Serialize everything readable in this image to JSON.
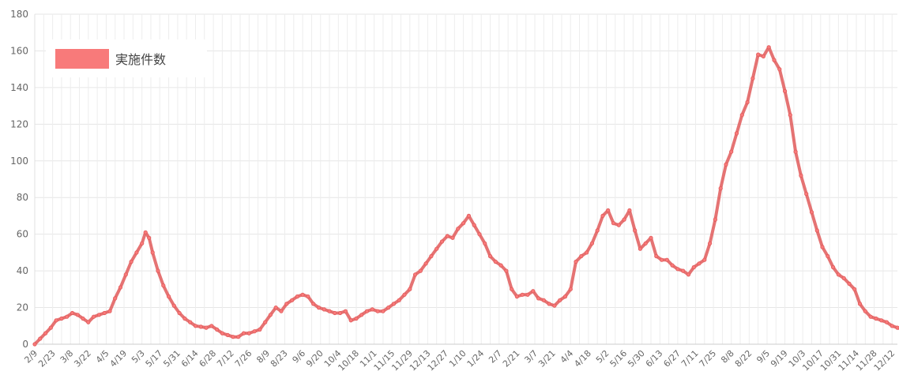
{
  "chart_data": {
    "type": "line",
    "ylim": [
      0,
      180
    ],
    "y_ticks": [
      0,
      20,
      40,
      60,
      80,
      100,
      120,
      140,
      160,
      180
    ],
    "x_tick_labels": [
      "2/9",
      "2/23",
      "3/8",
      "3/22",
      "4/5",
      "4/19",
      "5/3",
      "5/17",
      "5/31",
      "6/14",
      "6/28",
      "7/12",
      "7/26",
      "8/9",
      "8/23",
      "9/6",
      "9/20",
      "10/4",
      "10/18",
      "11/1",
      "11/15",
      "11/29",
      "12/13",
      "12/27",
      "1/10",
      "1/24",
      "2/7",
      "2/21",
      "3/7",
      "3/21",
      "4/4",
      "4/18",
      "5/2",
      "5/16",
      "5/30",
      "6/13",
      "6/27",
      "7/11",
      "7/25",
      "8/8",
      "8/22",
      "9/5",
      "9/19",
      "10/3",
      "10/17",
      "10/31",
      "11/14",
      "11/28",
      "12/12"
    ],
    "grid": true,
    "legend_position": "top-left",
    "colors": {
      "line": "#e05a5a",
      "fill_swatch": "#f87a7a",
      "grid": "#e6e6e6"
    },
    "series": [
      {
        "name": "実施件数",
        "points": [
          [
            0,
            0
          ],
          [
            0.3,
            3
          ],
          [
            0.6,
            6
          ],
          [
            0.9,
            9
          ],
          [
            1.2,
            13
          ],
          [
            1.5,
            14
          ],
          [
            1.8,
            15
          ],
          [
            2.1,
            17
          ],
          [
            2.4,
            16
          ],
          [
            2.7,
            14
          ],
          [
            3,
            12
          ],
          [
            3.3,
            15
          ],
          [
            3.6,
            16
          ],
          [
            3.9,
            17
          ],
          [
            4.2,
            18
          ],
          [
            4.5,
            25
          ],
          [
            4.8,
            31
          ],
          [
            5.1,
            38
          ],
          [
            5.4,
            45
          ],
          [
            5.7,
            50
          ],
          [
            6,
            55
          ],
          [
            6.2,
            61
          ],
          [
            6.4,
            58
          ],
          [
            6.6,
            50
          ],
          [
            6.9,
            40
          ],
          [
            7.2,
            32
          ],
          [
            7.5,
            26
          ],
          [
            7.8,
            21
          ],
          [
            8.1,
            17
          ],
          [
            8.4,
            14
          ],
          [
            8.7,
            12
          ],
          [
            9,
            10
          ],
          [
            9.3,
            9.5
          ],
          [
            9.6,
            9
          ],
          [
            9.9,
            10
          ],
          [
            10.2,
            8
          ],
          [
            10.5,
            6
          ],
          [
            10.8,
            5
          ],
          [
            11.1,
            4
          ],
          [
            11.4,
            4
          ],
          [
            11.7,
            6
          ],
          [
            12,
            6
          ],
          [
            12.3,
            7
          ],
          [
            12.6,
            8
          ],
          [
            12.9,
            12
          ],
          [
            13.2,
            16
          ],
          [
            13.5,
            20
          ],
          [
            13.8,
            18
          ],
          [
            14.1,
            22
          ],
          [
            14.4,
            24
          ],
          [
            14.7,
            26
          ],
          [
            15,
            27
          ],
          [
            15.3,
            26
          ],
          [
            15.6,
            22
          ],
          [
            15.9,
            20
          ],
          [
            16.2,
            19
          ],
          [
            16.5,
            18
          ],
          [
            16.8,
            17
          ],
          [
            17.1,
            17
          ],
          [
            17.4,
            18
          ],
          [
            17.7,
            13
          ],
          [
            18,
            14
          ],
          [
            18.3,
            16
          ],
          [
            18.6,
            18
          ],
          [
            18.9,
            19
          ],
          [
            19.2,
            18
          ],
          [
            19.5,
            18
          ],
          [
            19.8,
            20
          ],
          [
            20.1,
            22
          ],
          [
            20.4,
            24
          ],
          [
            20.7,
            27
          ],
          [
            21,
            30
          ],
          [
            21.3,
            38
          ],
          [
            21.6,
            40
          ],
          [
            21.9,
            44
          ],
          [
            22.2,
            48
          ],
          [
            22.5,
            52
          ],
          [
            22.8,
            56
          ],
          [
            23.1,
            59
          ],
          [
            23.4,
            58
          ],
          [
            23.7,
            63
          ],
          [
            24,
            66
          ],
          [
            24.3,
            70
          ],
          [
            24.6,
            65
          ],
          [
            24.9,
            60
          ],
          [
            25.2,
            55
          ],
          [
            25.5,
            48
          ],
          [
            25.8,
            45
          ],
          [
            26.1,
            43
          ],
          [
            26.4,
            40
          ],
          [
            26.7,
            30
          ],
          [
            27,
            26
          ],
          [
            27.3,
            27
          ],
          [
            27.6,
            27
          ],
          [
            27.9,
            29
          ],
          [
            28.2,
            25
          ],
          [
            28.5,
            24
          ],
          [
            28.8,
            22
          ],
          [
            29.1,
            21
          ],
          [
            29.4,
            24
          ],
          [
            29.7,
            26
          ],
          [
            30,
            30
          ],
          [
            30.3,
            45
          ],
          [
            30.6,
            48
          ],
          [
            30.9,
            50
          ],
          [
            31.2,
            55
          ],
          [
            31.5,
            62
          ],
          [
            31.8,
            70
          ],
          [
            32.1,
            73
          ],
          [
            32.4,
            66
          ],
          [
            32.7,
            65
          ],
          [
            33,
            68
          ],
          [
            33.3,
            73
          ],
          [
            33.6,
            62
          ],
          [
            33.9,
            52
          ],
          [
            34.2,
            55
          ],
          [
            34.5,
            58
          ],
          [
            34.8,
            48
          ],
          [
            35.1,
            46
          ],
          [
            35.4,
            46
          ],
          [
            35.7,
            43
          ],
          [
            36,
            41
          ],
          [
            36.3,
            40
          ],
          [
            36.6,
            38
          ],
          [
            36.9,
            42
          ],
          [
            37.2,
            44
          ],
          [
            37.5,
            46
          ],
          [
            37.8,
            55
          ],
          [
            38.1,
            68
          ],
          [
            38.4,
            85
          ],
          [
            38.7,
            98
          ],
          [
            39,
            105
          ],
          [
            39.3,
            115
          ],
          [
            39.6,
            125
          ],
          [
            39.9,
            132
          ],
          [
            40.2,
            145
          ],
          [
            40.5,
            158
          ],
          [
            40.8,
            157
          ],
          [
            41.1,
            162
          ],
          [
            41.4,
            155
          ],
          [
            41.7,
            150
          ],
          [
            42,
            138
          ],
          [
            42.3,
            125
          ],
          [
            42.6,
            105
          ],
          [
            42.9,
            92
          ],
          [
            43.2,
            82
          ],
          [
            43.5,
            72
          ],
          [
            43.8,
            62
          ],
          [
            44.1,
            53
          ],
          [
            44.4,
            48
          ],
          [
            44.7,
            42
          ],
          [
            45,
            38
          ],
          [
            45.3,
            36
          ],
          [
            45.6,
            33
          ],
          [
            45.9,
            30
          ],
          [
            46.2,
            22
          ],
          [
            46.5,
            18
          ],
          [
            46.8,
            15
          ],
          [
            47.1,
            14
          ],
          [
            47.4,
            13
          ],
          [
            47.7,
            12
          ],
          [
            48,
            10
          ],
          [
            48.3,
            9
          ],
          [
            48.6,
            8
          ]
        ]
      }
    ]
  }
}
